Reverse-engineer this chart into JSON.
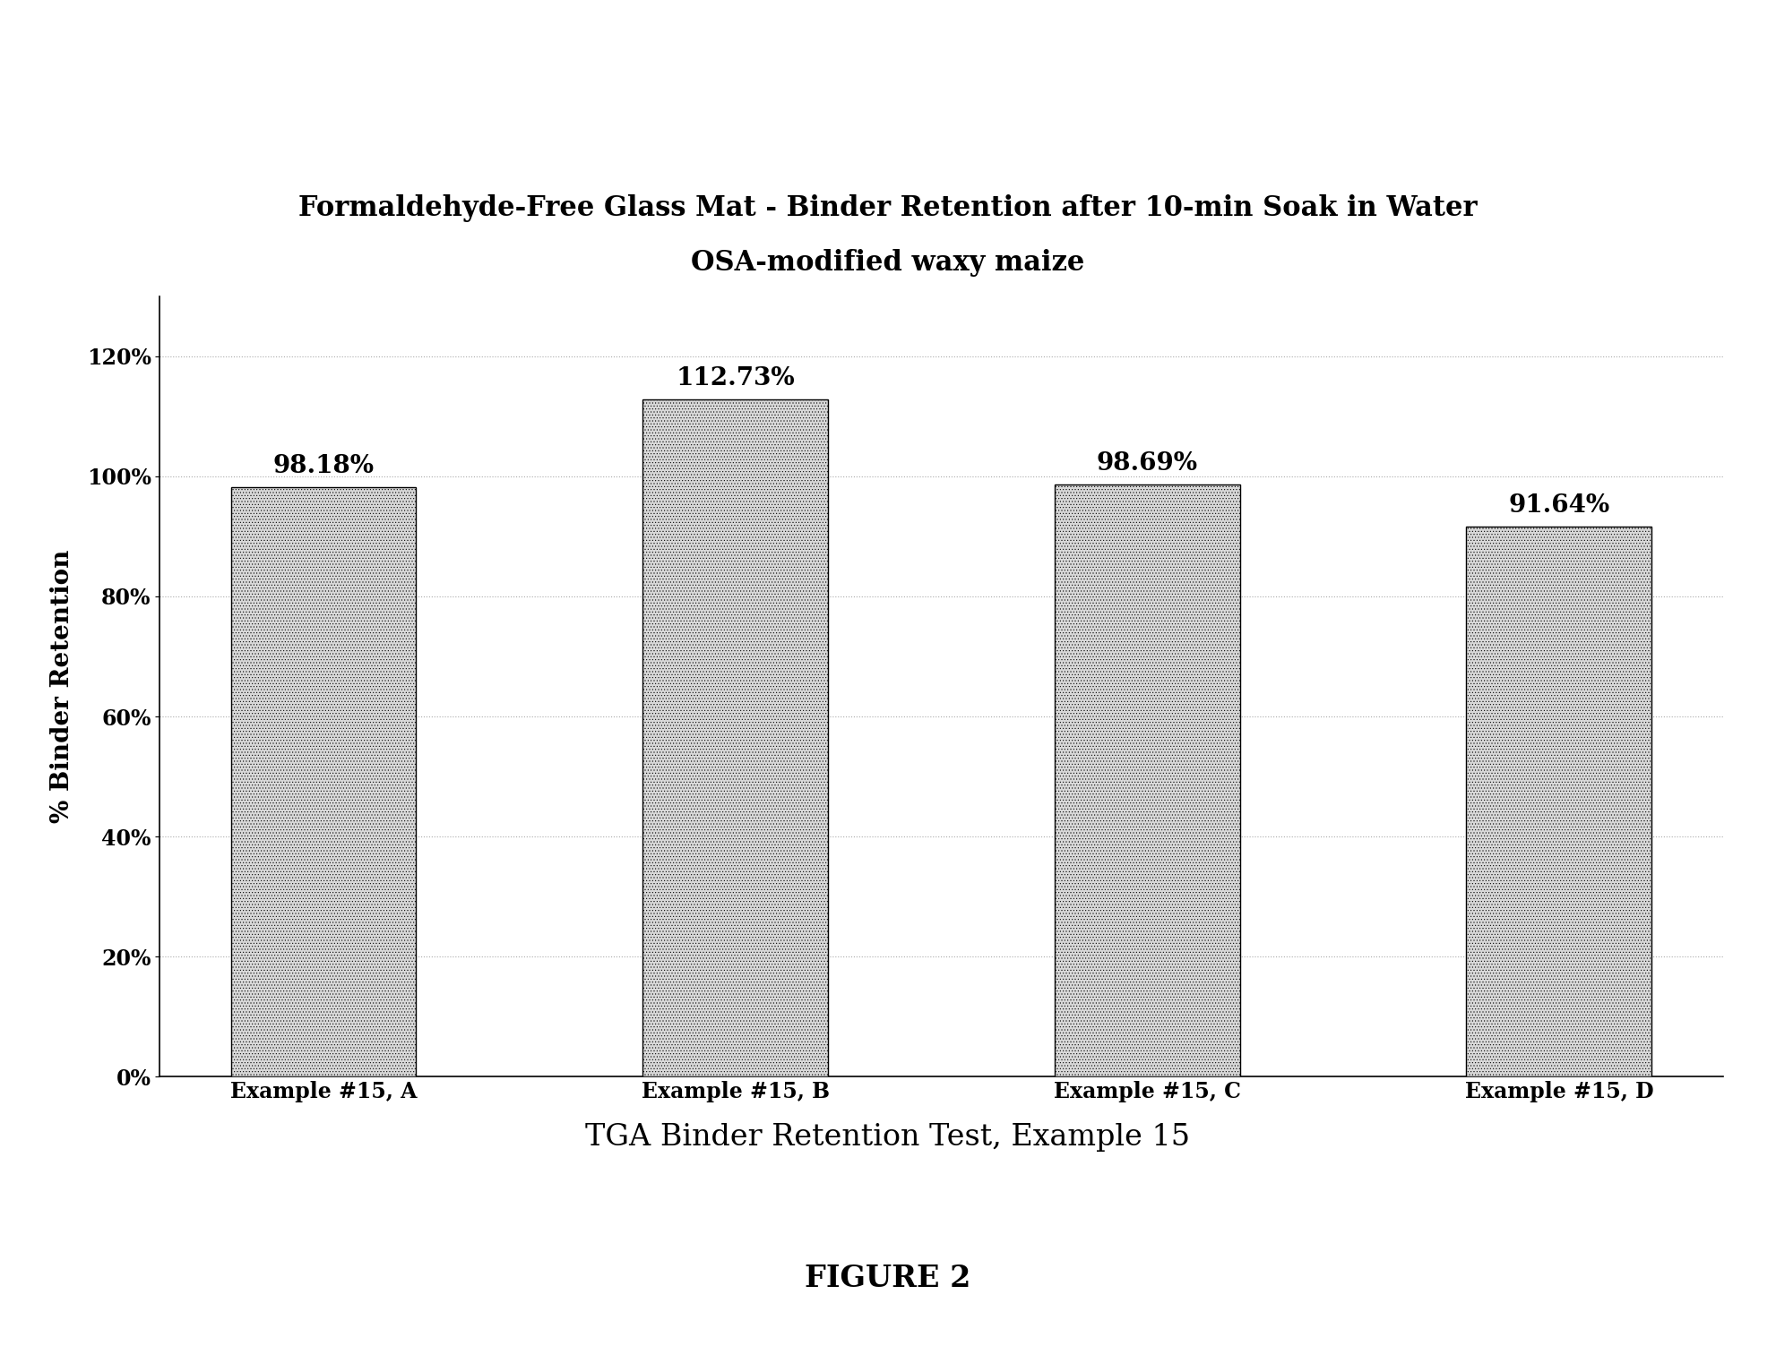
{
  "title_line1": "Formaldehyde-Free Glass Mat - Binder Retention after 10-min Soak in Water",
  "title_line2": "OSA-modified waxy maize",
  "xlabel_caption": "TGA Binder Retention Test, Example 15",
  "figure_label": "FIGURE 2",
  "ylabel": "% Binder Retention",
  "categories": [
    "Example #15, A",
    "Example #15, B",
    "Example #15, C",
    "Example #15, D"
  ],
  "values": [
    98.18,
    112.73,
    98.69,
    91.64
  ],
  "labels": [
    "98.18%",
    "112.73%",
    "98.69%",
    "91.64%"
  ],
  "ylim": [
    0,
    130
  ],
  "yticks": [
    0,
    20,
    40,
    60,
    80,
    100,
    120
  ],
  "bar_color": "#D8D8D8",
  "bar_edgecolor": "#000000",
  "hatch": ".....",
  "background_color": "#ffffff",
  "title_fontsize": 22,
  "subtitle_fontsize": 22,
  "label_fontsize": 20,
  "tick_fontsize": 17,
  "ylabel_fontsize": 20,
  "caption_fontsize": 24,
  "figure_label_fontsize": 24,
  "grid_color": "#aaaaaa",
  "bar_width": 0.45
}
